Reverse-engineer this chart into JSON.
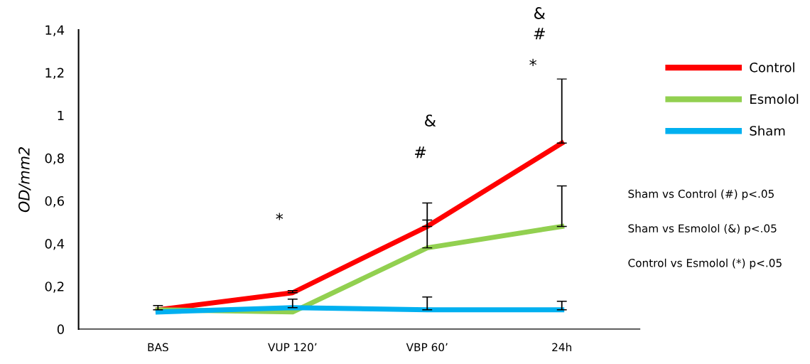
{
  "chart_data": {
    "type": "line",
    "ylabel": "OD/mm2",
    "categories": [
      "BAS",
      "VUP 120’",
      "VBP 60’",
      "24h"
    ],
    "series": [
      {
        "name": "Control",
        "color": "#ff0000",
        "values": [
          0.09,
          0.17,
          0.48,
          0.87
        ],
        "errors": [
          [
            0.09,
            0.11
          ],
          [
            0.17,
            0.18
          ],
          [
            0.48,
            0.59
          ],
          [
            0.87,
            1.17
          ]
        ]
      },
      {
        "name": "Esmolol",
        "color": "#92d050",
        "values": [
          0.09,
          0.08,
          0.38,
          0.48
        ],
        "errors": [
          null,
          null,
          [
            0.38,
            0.51
          ],
          [
            0.48,
            0.67
          ]
        ]
      },
      {
        "name": "Sham",
        "color": "#00b0f0",
        "values": [
          0.08,
          0.1,
          0.09,
          0.09
        ],
        "errors": [
          null,
          [
            0.1,
            0.14
          ],
          [
            0.09,
            0.15
          ],
          [
            0.09,
            0.13
          ]
        ]
      }
    ],
    "ylim": [
      0,
      1.4
    ],
    "yticks": [
      0,
      {
        "value": 0.2,
        "label": "0,2"
      },
      {
        "value": 0.4,
        "label": "0,4"
      },
      {
        "value": 0.6,
        "label": "0,6"
      },
      {
        "value": 0.8,
        "label": "0,8"
      },
      1,
      {
        "value": 1.2,
        "label": "1,2"
      },
      {
        "value": 1.4,
        "label": "1,4"
      }
    ],
    "grid": false,
    "legend": "right",
    "marker": "none",
    "line_style": "solid",
    "annotations": [
      "*",
      "#",
      "&",
      "*",
      "#",
      "&",
      "Sham vs Control (#) p<.05",
      "Sham vs Esmolol (&) p<.05",
      "Control vs Esmolol (*) p<.05"
    ]
  }
}
